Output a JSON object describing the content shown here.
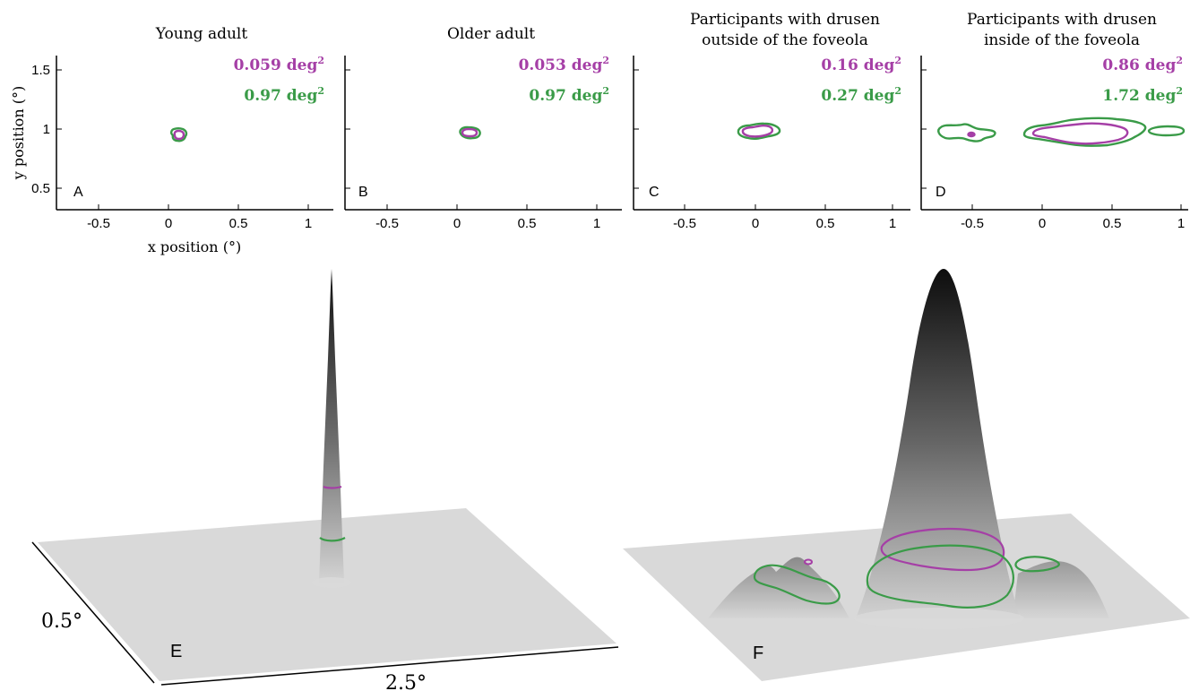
{
  "colors": {
    "inner": "#a53fa6",
    "outer": "#3a9b48",
    "axis": "#000000",
    "plane": "#d9d9d9"
  },
  "chart_data": [
    {
      "type": "contour",
      "panel": "A",
      "title": "Young adult",
      "xlabel": "x position (°)",
      "ylabel": "y position (°)",
      "xlim": [
        -0.8,
        1.2
      ],
      "ylim": [
        0.3,
        1.65
      ],
      "xticks": [
        -0.5,
        0,
        0.5,
        1
      ],
      "yticks": [
        0.5,
        1,
        1.5
      ],
      "xtick_labels": [
        "-0.5",
        "0",
        "0.5",
        "1"
      ],
      "ytick_labels": [
        "0.5",
        "1",
        "1.5"
      ],
      "series": [
        {
          "name": "0.059 deg",
          "unit_sup": "2",
          "area": 0.059,
          "center": [
            0.08,
            0.945
          ],
          "rx": 0.04,
          "ry": 0.035
        },
        {
          "name": "0.97 deg",
          "unit_sup": "2",
          "area": 0.97,
          "center": [
            0.08,
            0.945
          ],
          "rx": 0.055,
          "ry": 0.045
        }
      ]
    },
    {
      "type": "contour",
      "panel": "B",
      "title": "Older adult",
      "xlim": [
        -0.8,
        1.2
      ],
      "ylim": [
        0.3,
        1.65
      ],
      "xticks": [
        -0.5,
        0,
        0.5,
        1
      ],
      "xtick_labels": [
        "-0.5",
        "0",
        "0.5",
        "1"
      ],
      "series": [
        {
          "name": "0.053 deg",
          "unit_sup": "2",
          "area": 0.053,
          "center": [
            0.09,
            0.965
          ],
          "rx": 0.05,
          "ry": 0.032
        },
        {
          "name": "0.97 deg",
          "unit_sup": "2",
          "area": 0.97,
          "center": [
            0.09,
            0.965
          ],
          "rx": 0.068,
          "ry": 0.042
        }
      ]
    },
    {
      "type": "contour",
      "panel": "C",
      "title_lines": [
        "Participants with drusen",
        "outside of the foveola"
      ],
      "xlim": [
        -0.8,
        1.2
      ],
      "ylim": [
        0.3,
        1.65
      ],
      "xticks": [
        -0.5,
        0,
        0.5,
        1
      ],
      "xtick_labels": [
        "-0.5",
        "0",
        "0.5",
        "1"
      ],
      "series": [
        {
          "name": "0.16 deg",
          "unit_sup": "2",
          "area": 0.16,
          "center": [
            0.02,
            0.985
          ],
          "rx": 0.12,
          "ry": 0.045
        },
        {
          "name": "0.27 deg",
          "unit_sup": "2",
          "area": 0.27,
          "center": [
            0.02,
            0.97
          ],
          "rx": 0.165,
          "ry": 0.07
        }
      ]
    },
    {
      "type": "contour",
      "panel": "D",
      "title_lines": [
        "Participants with drusen",
        "inside of the foveola"
      ],
      "xlim": [
        -0.8,
        1.0
      ],
      "ylim": [
        0.3,
        1.65
      ],
      "xticks": [
        -0.5,
        0,
        0.5,
        1
      ],
      "xtick_labels": [
        "-0.5",
        "0",
        "0.5",
        "1"
      ],
      "series": [
        {
          "name": "0.86 deg",
          "unit_sup": "2",
          "area": 0.86,
          "center": [
            0.2,
            0.965
          ],
          "rx": 0.3,
          "ry": 0.075
        },
        {
          "name": "1.72 deg",
          "unit_sup": "2",
          "area": 1.72,
          "center": [
            0.2,
            0.975
          ],
          "rx": 0.43,
          "ry": 0.11
        }
      ]
    }
  ],
  "panel_e": {
    "label": "E",
    "depth_label": "0.5°",
    "width_label": "2.5°"
  },
  "panel_f": {
    "label": "F"
  }
}
